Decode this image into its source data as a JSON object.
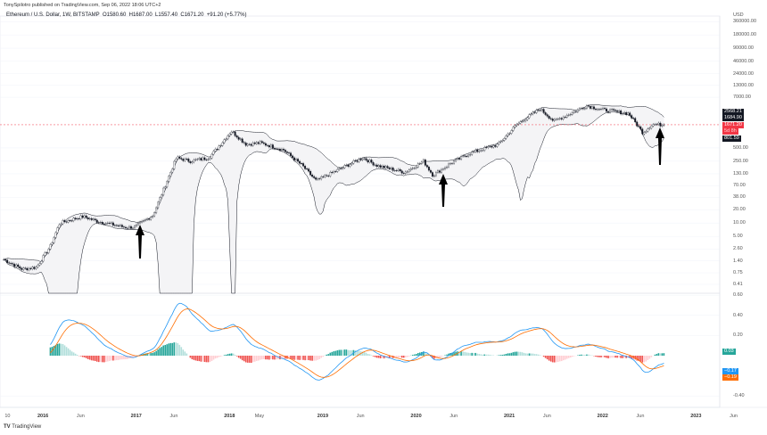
{
  "header": {
    "published": "TonySpilotro published on TradingView.com, Sep 06, 2022 18:06 UTC+2",
    "symbol": "Ethereum / U.S. Dollar, 1W, BITSTAMP",
    "open": "O1580.60",
    "high": "H1687.00",
    "low": "L1557.40",
    "close": "C1671.20",
    "change": "+91.20 (+5.77%)"
  },
  "price_axis": {
    "currency": "USD",
    "ticks": [
      "360000.00",
      "180000.00",
      "90000.00",
      "46000.00",
      "24000.00",
      "13000.00",
      "7000.00",
      "500.00",
      "250.00",
      "130.00",
      "70.00",
      "38.00",
      "20.00",
      "10.00",
      "5.00",
      "2.60",
      "1.40",
      "0.75",
      "0.41"
    ],
    "tags": {
      "upper": "2568.21",
      "mid": "1684.90",
      "last": "1671.20",
      "countdown": "5d 8h",
      "lower": "801.59"
    }
  },
  "macd_axis": {
    "ticks": [
      "0.60",
      "0.40",
      "0.20",
      "-0.40"
    ],
    "tags": {
      "hist": "0.03",
      "macd": "−0.17",
      "signal": "−0.19"
    }
  },
  "time_axis": [
    "10",
    "2016",
    "Jun",
    "2017",
    "Jun",
    "2018",
    "May",
    "2019",
    "Jun",
    "2020",
    "Jun",
    "2021",
    "Jun",
    "2022",
    "Jun",
    "2023",
    "Jun"
  ],
  "footer": {
    "brand": "TradingView"
  },
  "colors": {
    "up": "#26a69a",
    "down": "#ef5350",
    "macd": "#2196f3",
    "signal": "#ff6d00",
    "last": "#f23645"
  },
  "chart_data": {
    "type": "line",
    "title": "Ethereum / U.S. Dollar, 1W, BITSTAMP",
    "ylabel": "USD",
    "scale": "log",
    "ylim": [
      0.41,
      360000
    ],
    "x": [
      2015.6,
      2015.8,
      2015.95,
      2016.1,
      2016.2,
      2016.45,
      2016.6,
      2016.9,
      2017.0,
      2017.2,
      2017.35,
      2017.45,
      2017.6,
      2017.8,
      2017.95,
      2018.04,
      2018.2,
      2018.35,
      2018.6,
      2018.8,
      2018.95,
      2019.1,
      2019.45,
      2019.6,
      2019.9,
      2020.1,
      2020.2,
      2020.4,
      2020.6,
      2020.9,
      2021.1,
      2021.35,
      2021.5,
      2021.85,
      2022.0,
      2022.3,
      2022.45,
      2022.55,
      2022.68
    ],
    "close": [
      1.5,
      0.9,
      1,
      3,
      10,
      14,
      11,
      8,
      8,
      15,
      90,
      300,
      250,
      300,
      700,
      1200,
      600,
      650,
      450,
      200,
      90,
      130,
      300,
      200,
      140,
      250,
      120,
      230,
      380,
      600,
      1700,
      3800,
      2000,
      4500,
      3700,
      3000,
      1100,
      1700,
      1671.2
    ],
    "indicators": [
      "Bollinger Bands (20, 2)",
      "MACD (12, 26, 9)"
    ],
    "annotations": [
      "up-arrow 2016.95",
      "up-arrow 2020.3",
      "up-arrow 2022.65"
    ],
    "macd_ylim": [
      -0.5,
      0.6
    ]
  }
}
